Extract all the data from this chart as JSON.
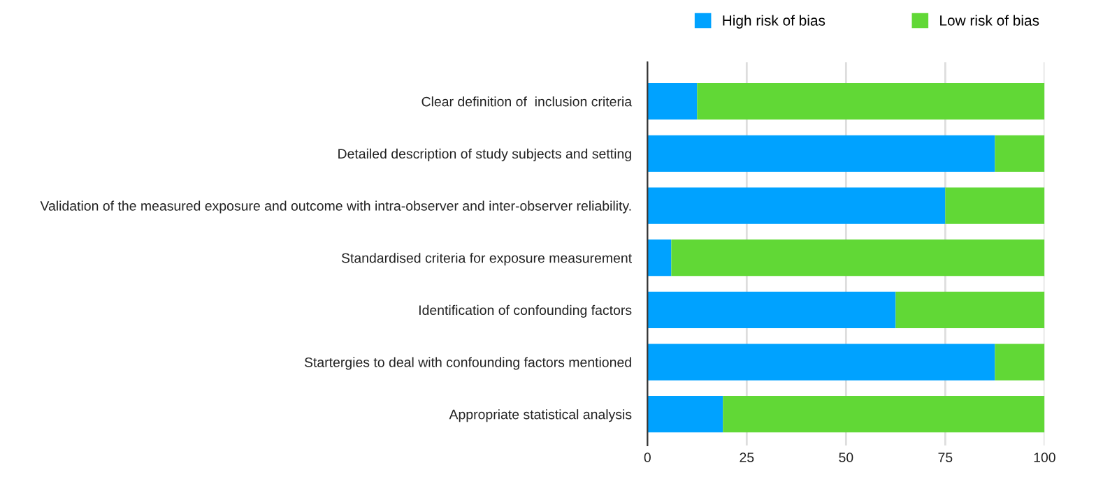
{
  "chart_data": {
    "type": "bar",
    "orientation": "horizontal",
    "stacked": true,
    "categories": [
      "Clear definition of  inclusion criteria",
      "Detailed description of study subjects and setting",
      "Validation of the measured exposure and outcome with intra-observer and inter-observer reliability.",
      "Standardised criteria for exposure measurement",
      "Identification of confounding factors",
      "Startergies to deal with confounding factors mentioned",
      "Appropriate statistical analysis"
    ],
    "series": [
      {
        "name": "High risk of bias",
        "color": "#00a2ff",
        "values": [
          12.5,
          87.5,
          75,
          6,
          62.5,
          87.5,
          19
        ]
      },
      {
        "name": "Low risk of bias",
        "color": "#61d836",
        "values": [
          87.5,
          12.5,
          25,
          94,
          37.5,
          12.5,
          81
        ]
      }
    ],
    "xlim": [
      0,
      100
    ],
    "xticks": [
      0,
      25,
      50,
      75,
      100
    ],
    "grid": "x",
    "legend": "top right"
  }
}
